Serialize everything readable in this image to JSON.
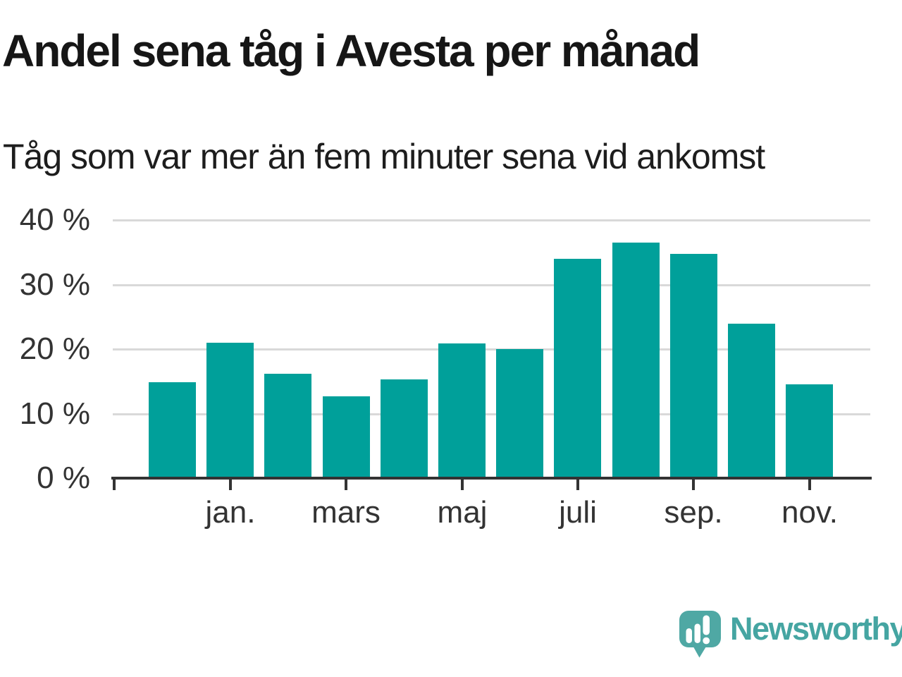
{
  "header": {
    "title": "Andel sena tåg i Avesta per månad",
    "subtitle": "Tåg som var mer än fem minuter sena vid ankomst"
  },
  "chart_data": {
    "type": "bar",
    "title": "Andel sena tåg i Avesta per månad",
    "subtitle": "Tåg som var mer än fem minuter sena vid ankomst",
    "unit": "%",
    "values": [
      14.9,
      21.0,
      16.2,
      12.7,
      15.3,
      20.9,
      20.0,
      34.0,
      36.5,
      34.8,
      24.0,
      14.6
    ],
    "x_tick_labels": [
      "jan.",
      "mars",
      "maj",
      "juli",
      "sep.",
      "nov."
    ],
    "labeled_bar_indices": [
      1,
      3,
      5,
      7,
      9,
      11
    ],
    "y_ticks": [
      0,
      10,
      20,
      30,
      40
    ],
    "y_tick_labels": [
      "0 %",
      "10 %",
      "20 %",
      "30 %",
      "40 %"
    ],
    "ylim": [
      0,
      40
    ],
    "grid": true,
    "legend": "none",
    "bar_color": "#00a09a"
  },
  "branding": {
    "wordmark": "Newsworthy",
    "icon": "newsworthy-speech-bubble-bar-chart-icon",
    "icon_color": "#4fa8a4",
    "wordmark_color": "#45a5a2"
  },
  "colors": {
    "background": "#ffffff",
    "bar": "#00a09a",
    "grid": "#d9d9d9",
    "axis": "#333333",
    "tick_text": "#333333",
    "title_text": "#161616"
  }
}
